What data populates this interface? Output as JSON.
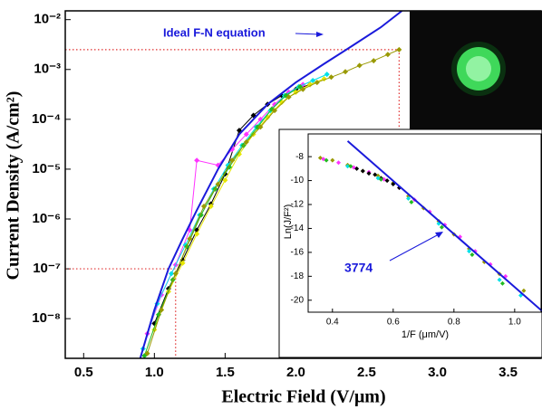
{
  "chart_data": [
    {
      "type": "scatter",
      "xlabel": "Electric Field (V/μm)",
      "ylabel": "Current Density (A/cm²)",
      "xlim": [
        0.37,
        3.74
      ],
      "ylim": [
        1.6e-09,
        0.015
      ],
      "log_y": true,
      "xticks": [
        {
          "value": 0.5,
          "label": "0.5"
        },
        {
          "value": 1,
          "label": "1.0"
        },
        {
          "value": 1.5,
          "label": "1.5"
        },
        {
          "value": 2,
          "label": "2.0"
        },
        {
          "value": 2.5,
          "label": "2.5"
        },
        {
          "value": 3,
          "label": "3.0"
        },
        {
          "value": 3.5,
          "label": "3.5"
        }
      ],
      "yticks": [
        {
          "value": 1e-08,
          "label": "10⁻⁸"
        },
        {
          "value": 1e-07,
          "label": "10⁻⁷"
        },
        {
          "value": 1e-06,
          "label": "10⁻⁶"
        },
        {
          "value": 1e-05,
          "label": "10⁻⁵"
        },
        {
          "value": 0.0001,
          "label": "10⁻⁴"
        },
        {
          "value": 0.001,
          "label": "10⁻³"
        },
        {
          "value": 0.01,
          "label": "10⁻²"
        }
      ],
      "series": [
        {
          "color": "#000000",
          "x": [
            1.0,
            1.1,
            1.2,
            1.3,
            1.4,
            1.5,
            1.6,
            1.7,
            1.8,
            1.9,
            2.0,
            2.1
          ],
          "values": [
            8e-09,
            4e-08,
            1.5e-07,
            6e-07,
            2e-06,
            8e-06,
            6e-05,
            0.00012,
            0.0002,
            0.0003,
            0.0004,
            0.0005
          ]
        },
        {
          "color": "#ff33ff",
          "x": [
            0.95,
            1.05,
            1.15,
            1.25,
            1.3,
            1.45,
            1.55,
            1.65,
            1.75,
            1.85,
            1.95,
            2.05
          ],
          "values": [
            5e-09,
            3e-08,
            1.2e-07,
            6e-07,
            1.5e-05,
            1.2e-05,
            2.5e-05,
            5e-05,
            0.0001,
            0.0002,
            0.00035,
            0.0005
          ]
        },
        {
          "color": "#00e0e8",
          "x": [
            0.92,
            1.02,
            1.12,
            1.22,
            1.32,
            1.42,
            1.52,
            1.62,
            1.72,
            1.82,
            1.92,
            2.02,
            2.12,
            2.22
          ],
          "values": [
            2.5e-09,
            2e-08,
            8e-08,
            3e-07,
            1.2e-06,
            4e-06,
            1.2e-05,
            3e-05,
            7e-05,
            0.00015,
            0.0003,
            0.00045,
            0.0006,
            0.0008
          ]
        },
        {
          "color": "#e6e600",
          "x": [
            1.0,
            1.1,
            1.2,
            1.3,
            1.4,
            1.5,
            1.6,
            1.7,
            1.8,
            1.9,
            2.0,
            2.1,
            2.2
          ],
          "values": [
            6e-09,
            3.5e-08,
            1.3e-07,
            5e-07,
            1.8e-06,
            6e-06,
            2e-05,
            5e-05,
            0.00011,
            0.00022,
            0.00035,
            0.0005,
            0.00065
          ]
        },
        {
          "color": "#22bb22",
          "x": [
            0.93,
            1.03,
            1.13,
            1.23,
            1.33,
            1.43,
            1.53,
            1.63,
            1.73,
            1.83,
            1.93,
            2.03
          ],
          "values": [
            1.8e-09,
            1.2e-08,
            6e-08,
            2.8e-07,
            1.2e-06,
            4e-06,
            1.1e-05,
            3e-05,
            7e-05,
            0.00016,
            0.0003,
            0.00045
          ]
        },
        {
          "color": "#999900",
          "x": [
            0.95,
            1.05,
            1.15,
            1.25,
            1.35,
            1.45,
            1.55,
            1.65,
            1.75,
            1.85,
            1.95,
            2.05,
            2.15,
            2.25,
            2.35,
            2.45,
            2.55,
            2.65,
            2.73
          ],
          "values": [
            2e-09,
            1.5e-08,
            8e-08,
            4e-07,
            1.8e-06,
            5e-06,
            1.5e-05,
            3.5e-05,
            7e-05,
            0.00015,
            0.00028,
            0.0004,
            0.00055,
            0.0007,
            0.0009,
            0.0012,
            0.0015,
            0.002,
            0.0025
          ]
        }
      ],
      "fit": {
        "name": "Ideal F-N equation",
        "color": "#1a1adb",
        "x": [
          0.9,
          1.0,
          1.1,
          1.2,
          1.3,
          1.45,
          1.6,
          1.8,
          2.0,
          2.2,
          2.4,
          2.6,
          2.75
        ],
        "values": [
          1.6e-09,
          1.5e-08,
          1e-07,
          4e-07,
          1.5e-06,
          1e-05,
          5e-05,
          0.0002,
          0.00055,
          0.0013,
          0.003,
          0.007,
          0.015
        ]
      },
      "ref_points": [
        {
          "x": 1.15,
          "y": 1e-07
        },
        {
          "x": 2.73,
          "y": 0.0025
        }
      ]
    },
    {
      "type": "scatter",
      "xlabel": "1/F (μm/V)",
      "ylabel": "Ln(J/F²)",
      "xlim": [
        0.32,
        1.09
      ],
      "ylim": [
        -21,
        -6.1
      ],
      "xticks": [
        0.4,
        0.6,
        0.8,
        {
          "value": 1,
          "label": "1.0"
        }
      ],
      "yticks": [
        -8,
        -10,
        -12,
        -14,
        -16,
        -18,
        -20
      ],
      "annotation": "3774",
      "series": [
        {
          "color": "#999900",
          "x": [
            0.36,
            0.4,
            0.45,
            0.5,
            0.55,
            0.6,
            0.65,
            0.7,
            0.75,
            0.8,
            0.85,
            0.9,
            0.95,
            1.03
          ],
          "values": [
            -8.1,
            -8.3,
            -8.7,
            -9.2,
            -9.6,
            -10.2,
            -11.3,
            -12.3,
            -13.4,
            -14.5,
            -15.7,
            -16.8,
            -17.8,
            -19.2
          ]
        },
        {
          "color": "#ff33ff",
          "x": [
            0.37,
            0.42,
            0.47,
            0.52,
            0.57,
            0.62,
            0.67,
            0.72,
            0.77,
            0.82,
            0.87,
            0.92,
            0.97
          ],
          "values": [
            -8.2,
            -8.5,
            -8.9,
            -9.3,
            -9.9,
            -10.6,
            -11.6,
            -12.6,
            -13.7,
            -14.7,
            -15.9,
            -17.0,
            -18.0
          ]
        },
        {
          "color": "#000000",
          "x": [
            0.48,
            0.5,
            0.52,
            0.54,
            0.56,
            0.58,
            0.6,
            0.62
          ],
          "values": [
            -9.0,
            -9.2,
            -9.4,
            -9.5,
            -9.8,
            -10.0,
            -10.3,
            -10.6
          ]
        },
        {
          "color": "#00e0e8",
          "x": [
            0.45,
            0.55,
            0.65,
            0.75,
            0.85,
            0.95,
            1.02
          ],
          "values": [
            -8.8,
            -9.8,
            -11.5,
            -13.6,
            -15.9,
            -18.3,
            -19.6
          ]
        },
        {
          "color": "#22bb22",
          "x": [
            0.38,
            0.46,
            0.56,
            0.66,
            0.76,
            0.86,
            0.96
          ],
          "values": [
            -8.3,
            -8.8,
            -9.9,
            -11.8,
            -13.9,
            -16.2,
            -18.6
          ]
        }
      ],
      "fit": {
        "color": "#1a1adb",
        "x": [
          0.45,
          1.09
        ],
        "values": [
          -6.7,
          -20.9
        ]
      }
    }
  ]
}
